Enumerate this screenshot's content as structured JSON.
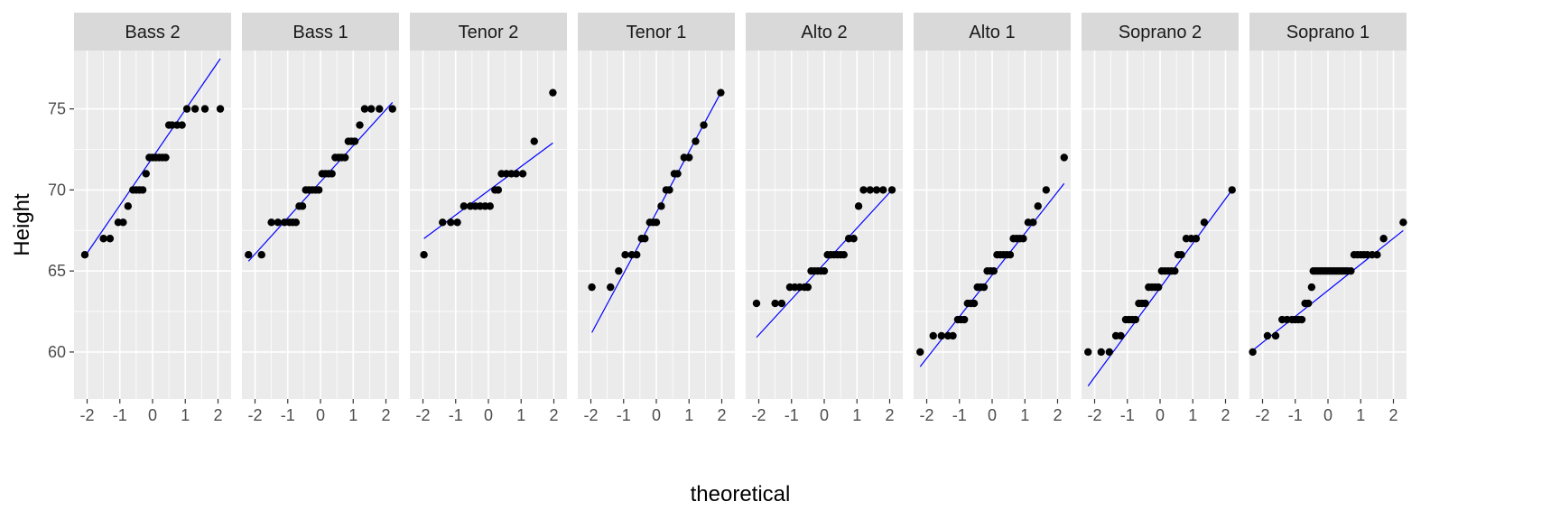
{
  "chart_data": {
    "type": "scatter",
    "subtype": "faceted-qq-plot",
    "xlabel": "theoretical",
    "ylabel": "Height",
    "xlim": [
      -2.4,
      2.4
    ],
    "ylim": [
      57.1,
      78.6
    ],
    "x_ticks": [
      -2,
      -1,
      0,
      1,
      2
    ],
    "x_tick_labels": [
      "-2",
      "-1",
      "0",
      "1",
      "2"
    ],
    "y_ticks": [
      60,
      65,
      70,
      75
    ],
    "y_tick_labels": [
      "60",
      "65",
      "70",
      "75"
    ],
    "grid": true,
    "legend": "none",
    "colors": {
      "points": "#000000",
      "line": "#0000ff",
      "panel_bg": "#ebebeb",
      "strip_bg": "#d9d9d9",
      "grid": "#ffffff"
    },
    "panels": [
      {
        "name": "Bass 2",
        "line": {
          "x": [
            -2.07,
            2.07
          ],
          "y": [
            65.9,
            78.1
          ]
        },
        "points": [
          [
            -2.07,
            66
          ],
          [
            -1.5,
            67
          ],
          [
            -1.3,
            67
          ],
          [
            -1.05,
            68
          ],
          [
            -0.9,
            68
          ],
          [
            -0.75,
            69
          ],
          [
            -0.6,
            70
          ],
          [
            -0.5,
            70
          ],
          [
            -0.4,
            70
          ],
          [
            -0.3,
            70
          ],
          [
            -0.2,
            71
          ],
          [
            -0.1,
            72
          ],
          [
            0,
            72
          ],
          [
            0.1,
            72
          ],
          [
            0.2,
            72
          ],
          [
            0.3,
            72
          ],
          [
            0.4,
            72
          ],
          [
            0.5,
            74
          ],
          [
            0.6,
            74
          ],
          [
            0.75,
            74
          ],
          [
            0.9,
            74
          ],
          [
            1.05,
            75
          ],
          [
            1.3,
            75
          ],
          [
            1.6,
            75
          ],
          [
            2.07,
            75
          ]
        ]
      },
      {
        "name": "Bass 1",
        "line": {
          "x": [
            -2.2,
            2.2
          ],
          "y": [
            65.6,
            75.4
          ]
        },
        "points": [
          [
            -2.2,
            66
          ],
          [
            -1.8,
            66
          ],
          [
            -1.5,
            68
          ],
          [
            -1.3,
            68
          ],
          [
            -1.1,
            68
          ],
          [
            -0.95,
            68
          ],
          [
            -0.85,
            68
          ],
          [
            -0.75,
            68
          ],
          [
            -0.65,
            69
          ],
          [
            -0.55,
            69
          ],
          [
            -0.45,
            70
          ],
          [
            -0.35,
            70
          ],
          [
            -0.25,
            70
          ],
          [
            -0.15,
            70
          ],
          [
            -0.05,
            70
          ],
          [
            0.05,
            71
          ],
          [
            0.15,
            71
          ],
          [
            0.25,
            71
          ],
          [
            0.35,
            71
          ],
          [
            0.45,
            72
          ],
          [
            0.55,
            72
          ],
          [
            0.65,
            72
          ],
          [
            0.75,
            72
          ],
          [
            0.85,
            73
          ],
          [
            0.95,
            73
          ],
          [
            1.05,
            73
          ],
          [
            1.2,
            74
          ],
          [
            1.35,
            75
          ],
          [
            1.55,
            75
          ],
          [
            1.8,
            75
          ],
          [
            2.2,
            75
          ]
        ]
      },
      {
        "name": "Tenor 2",
        "line": {
          "x": [
            -1.97,
            1.97
          ],
          "y": [
            67.0,
            72.9
          ]
        },
        "points": [
          [
            -1.97,
            66
          ],
          [
            -1.4,
            68
          ],
          [
            -1.15,
            68
          ],
          [
            -0.95,
            68
          ],
          [
            -0.75,
            69
          ],
          [
            -0.55,
            69
          ],
          [
            -0.4,
            69
          ],
          [
            -0.25,
            69
          ],
          [
            -0.1,
            69
          ],
          [
            0.05,
            69
          ],
          [
            0.2,
            70
          ],
          [
            0.3,
            70
          ],
          [
            0.4,
            71
          ],
          [
            0.55,
            71
          ],
          [
            0.7,
            71
          ],
          [
            0.85,
            71
          ],
          [
            1.05,
            71
          ],
          [
            1.4,
            73
          ],
          [
            1.97,
            76
          ]
        ]
      },
      {
        "name": "Tenor 1",
        "line": {
          "x": [
            -1.97,
            1.97
          ],
          "y": [
            61.2,
            76.0
          ]
        },
        "points": [
          [
            -1.97,
            64
          ],
          [
            -1.4,
            64
          ],
          [
            -1.15,
            65
          ],
          [
            -0.95,
            66
          ],
          [
            -0.75,
            66
          ],
          [
            -0.6,
            66
          ],
          [
            -0.45,
            67
          ],
          [
            -0.35,
            67
          ],
          [
            -0.2,
            68
          ],
          [
            -0.1,
            68
          ],
          [
            0,
            68
          ],
          [
            0.15,
            69
          ],
          [
            0.3,
            70
          ],
          [
            0.4,
            70
          ],
          [
            0.55,
            71
          ],
          [
            0.65,
            71
          ],
          [
            0.85,
            72
          ],
          [
            1.0,
            72
          ],
          [
            1.2,
            73
          ],
          [
            1.45,
            74
          ],
          [
            1.97,
            76
          ]
        ]
      },
      {
        "name": "Alto 2",
        "line": {
          "x": [
            -2.07,
            2.07
          ],
          "y": [
            60.9,
            70.0
          ]
        },
        "points": [
          [
            -2.07,
            63
          ],
          [
            -1.5,
            63
          ],
          [
            -1.3,
            63
          ],
          [
            -1.05,
            64
          ],
          [
            -0.9,
            64
          ],
          [
            -0.75,
            64
          ],
          [
            -0.6,
            64
          ],
          [
            -0.5,
            64
          ],
          [
            -0.4,
            65
          ],
          [
            -0.3,
            65
          ],
          [
            -0.2,
            65
          ],
          [
            -0.1,
            65
          ],
          [
            0,
            65
          ],
          [
            0.1,
            66
          ],
          [
            0.2,
            66
          ],
          [
            0.3,
            66
          ],
          [
            0.4,
            66
          ],
          [
            0.5,
            66
          ],
          [
            0.6,
            66
          ],
          [
            0.75,
            67
          ],
          [
            0.9,
            67
          ],
          [
            1.05,
            69
          ],
          [
            1.2,
            70
          ],
          [
            1.4,
            70
          ],
          [
            1.6,
            70
          ],
          [
            1.8,
            70
          ],
          [
            2.07,
            70
          ]
        ]
      },
      {
        "name": "Alto 1",
        "line": {
          "x": [
            -2.2,
            2.2
          ],
          "y": [
            59.1,
            70.4
          ]
        },
        "points": [
          [
            -2.2,
            60
          ],
          [
            -1.8,
            61
          ],
          [
            -1.55,
            61
          ],
          [
            -1.35,
            61
          ],
          [
            -1.2,
            61
          ],
          [
            -1.05,
            62
          ],
          [
            -0.95,
            62
          ],
          [
            -0.85,
            62
          ],
          [
            -0.75,
            63
          ],
          [
            -0.65,
            63
          ],
          [
            -0.55,
            63
          ],
          [
            -0.45,
            64
          ],
          [
            -0.35,
            64
          ],
          [
            -0.25,
            64
          ],
          [
            -0.15,
            65
          ],
          [
            -0.05,
            65
          ],
          [
            0.05,
            65
          ],
          [
            0.15,
            66
          ],
          [
            0.25,
            66
          ],
          [
            0.35,
            66
          ],
          [
            0.45,
            66
          ],
          [
            0.55,
            66
          ],
          [
            0.65,
            67
          ],
          [
            0.75,
            67
          ],
          [
            0.85,
            67
          ],
          [
            0.95,
            67
          ],
          [
            1.1,
            68
          ],
          [
            1.25,
            68
          ],
          [
            1.4,
            69
          ],
          [
            1.65,
            70
          ],
          [
            2.2,
            72
          ]
        ]
      },
      {
        "name": "Soprano 2",
        "line": {
          "x": [
            -2.2,
            2.2
          ],
          "y": [
            57.9,
            70.0
          ]
        },
        "points": [
          [
            -2.2,
            60
          ],
          [
            -1.8,
            60
          ],
          [
            -1.55,
            60
          ],
          [
            -1.35,
            61
          ],
          [
            -1.2,
            61
          ],
          [
            -1.05,
            62
          ],
          [
            -0.95,
            62
          ],
          [
            -0.85,
            62
          ],
          [
            -0.75,
            62
          ],
          [
            -0.65,
            63
          ],
          [
            -0.55,
            63
          ],
          [
            -0.45,
            63
          ],
          [
            -0.35,
            64
          ],
          [
            -0.25,
            64
          ],
          [
            -0.15,
            64
          ],
          [
            -0.05,
            64
          ],
          [
            0.05,
            65
          ],
          [
            0.15,
            65
          ],
          [
            0.25,
            65
          ],
          [
            0.35,
            65
          ],
          [
            0.45,
            65
          ],
          [
            0.55,
            66
          ],
          [
            0.65,
            66
          ],
          [
            0.8,
            67
          ],
          [
            0.95,
            67
          ],
          [
            1.1,
            67
          ],
          [
            1.35,
            68
          ],
          [
            2.2,
            70
          ]
        ]
      },
      {
        "name": "Soprano 1",
        "line": {
          "x": [
            -2.3,
            2.3
          ],
          "y": [
            60.1,
            67.5
          ]
        },
        "points": [
          [
            -2.3,
            60
          ],
          [
            -1.85,
            61
          ],
          [
            -1.6,
            61
          ],
          [
            -1.4,
            62
          ],
          [
            -1.25,
            62
          ],
          [
            -1.1,
            62
          ],
          [
            -1.0,
            62
          ],
          [
            -0.9,
            62
          ],
          [
            -0.8,
            62
          ],
          [
            -0.7,
            63
          ],
          [
            -0.6,
            63
          ],
          [
            -0.5,
            64
          ],
          [
            -0.45,
            65
          ],
          [
            -0.38,
            65
          ],
          [
            -0.31,
            65
          ],
          [
            -0.24,
            65
          ],
          [
            -0.17,
            65
          ],
          [
            -0.1,
            65
          ],
          [
            -0.03,
            65
          ],
          [
            0.04,
            65
          ],
          [
            0.11,
            65
          ],
          [
            0.18,
            65
          ],
          [
            0.25,
            65
          ],
          [
            0.32,
            65
          ],
          [
            0.39,
            65
          ],
          [
            0.46,
            65
          ],
          [
            0.53,
            65
          ],
          [
            0.6,
            65
          ],
          [
            0.7,
            65
          ],
          [
            0.8,
            66
          ],
          [
            0.9,
            66
          ],
          [
            1.0,
            66
          ],
          [
            1.1,
            66
          ],
          [
            1.2,
            66
          ],
          [
            1.35,
            66
          ],
          [
            1.5,
            66
          ],
          [
            1.7,
            67
          ],
          [
            2.3,
            68
          ]
        ]
      }
    ]
  }
}
